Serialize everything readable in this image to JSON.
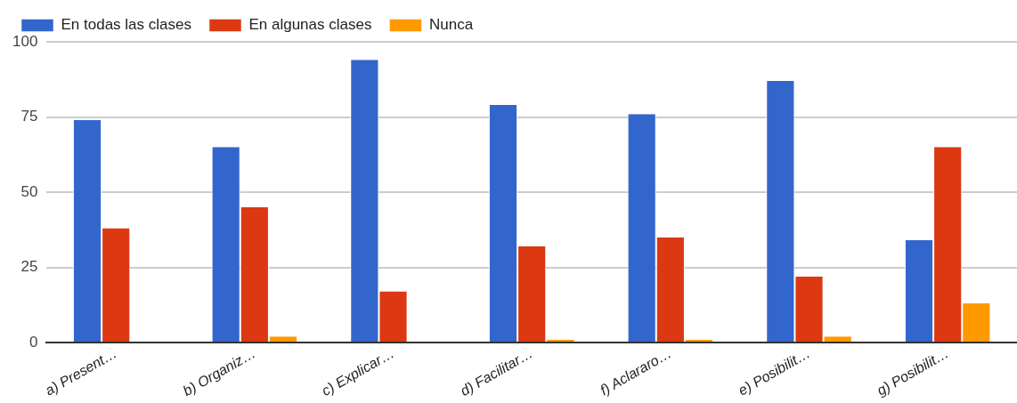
{
  "chart_data": {
    "type": "bar",
    "categories": [
      "a) Present…",
      "b) Organiz…",
      "c) Explicar…",
      "d) Facilitar…",
      "f) Aclararo…",
      "e) Posibilit…",
      "g) Posibilit…"
    ],
    "series": [
      {
        "name": "En todas las clases",
        "color": "#3366cc",
        "values": [
          74,
          65,
          94,
          79,
          76,
          87,
          34
        ]
      },
      {
        "name": "En algunas clases",
        "color": "#dc3912",
        "values": [
          38,
          45,
          17,
          32,
          35,
          22,
          65
        ]
      },
      {
        "name": "Nunca",
        "color": "#ff9900",
        "values": [
          0,
          2,
          0,
          1,
          1,
          2,
          13
        ]
      }
    ],
    "ylim": [
      0,
      100
    ],
    "yticks": [
      0,
      25,
      50,
      75,
      100
    ],
    "grid": "y",
    "legend": "top left"
  }
}
